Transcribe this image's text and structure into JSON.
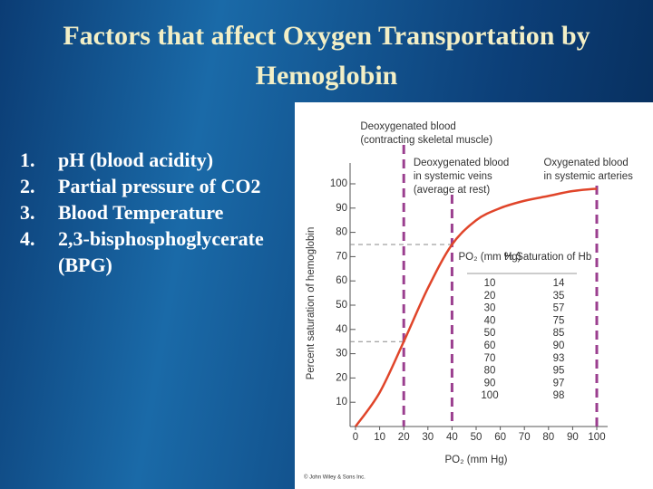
{
  "slide": {
    "title": "Factors that affect Oxygen Transportation by Hemoglobin",
    "items": [
      {
        "number": "1.",
        "text": "pH (blood acidity)"
      },
      {
        "number": "2.",
        "text": "Partial pressure of CO2"
      },
      {
        "number": "3.",
        "text": "Blood Temperature"
      },
      {
        "number": "4.",
        "text": "2,3-bisphosphoglycerate (BPG)"
      }
    ]
  },
  "chart_data": {
    "type": "line",
    "xlabel": "PO₂ (mm Hg)",
    "ylabel": "Percent saturation of hemoglobin",
    "x": [
      0,
      10,
      20,
      30,
      40,
      50,
      60,
      70,
      80,
      90,
      100
    ],
    "series": [
      {
        "color": "#e0452a",
        "values": [
          0,
          14,
          35,
          57,
          75,
          85,
          90,
          93,
          95,
          97,
          98
        ]
      }
    ],
    "xlim": [
      0,
      100
    ],
    "xticks": [
      0,
      10,
      20,
      30,
      40,
      50,
      60,
      70,
      80,
      90,
      100
    ],
    "ylim": [
      0,
      100
    ],
    "yticks": [
      10,
      20,
      30,
      40,
      50,
      60,
      70,
      80,
      90,
      100
    ],
    "reference_lines": [
      {
        "x": 20,
        "y": 35
      },
      {
        "x": 40,
        "y": 75
      },
      {
        "x": 100
      }
    ],
    "reference_color": "#9b3f8f",
    "annotations": [
      {
        "x": 2,
        "lines": [
          "Deoxygenated blood",
          "(contracting skeletal muscle)"
        ],
        "top": 0
      },
      {
        "x": 24,
        "lines": [
          "Deoxygenated blood",
          "in systemic veins",
          "(average at rest)"
        ],
        "top": 1
      },
      {
        "x": 78,
        "lines": [
          "Oxygenated blood",
          "in systemic arteries"
        ],
        "top": 1
      }
    ],
    "table": {
      "columns": [
        "PO₂ (mm Hg)",
        "% Saturation of Hb"
      ],
      "rows": [
        [
          10,
          14
        ],
        [
          20,
          35
        ],
        [
          30,
          57
        ],
        [
          40,
          75
        ],
        [
          50,
          85
        ],
        [
          60,
          90
        ],
        [
          70,
          93
        ],
        [
          80,
          95
        ],
        [
          90,
          97
        ],
        [
          100,
          98
        ]
      ]
    },
    "credit": "© John Wiley & Sons Inc."
  }
}
